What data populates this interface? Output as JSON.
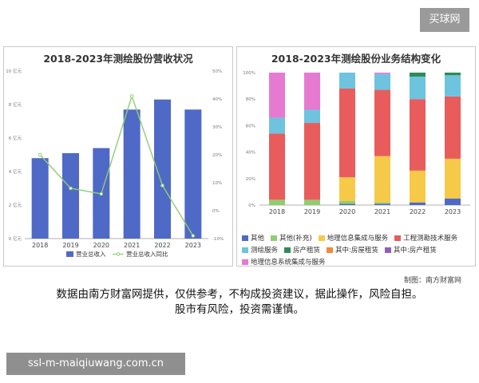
{
  "brand_badge": "买球网",
  "left_chart": {
    "title": "2018-2023年测绘股份营收状况",
    "legend": [
      "营业总收入",
      "营业总收入同比"
    ],
    "left_ticks": [
      "0 亿元",
      "2 亿元",
      "4 亿元",
      "6 亿元",
      "8 亿元",
      "10 亿元"
    ],
    "right_ticks": [
      "-10%",
      "0%",
      "10%",
      "20%",
      "30%",
      "40%",
      "50%"
    ]
  },
  "right_chart": {
    "title": "2018-2023年测绘股份业务结构变化",
    "y_ticks": [
      "0%",
      "20%",
      "40%",
      "60%",
      "80%",
      "100%"
    ],
    "legend": [
      "其他",
      "其他(补充)",
      "地理信息集成与服务",
      "工程测勘技术服务",
      "测绘服务",
      "房产租赁",
      "其中:房屋租赁",
      "其中:房产租赁",
      "地理信息系统集成与服务"
    ]
  },
  "colors": {
    "bar": "#4f69c6",
    "line": "#8fce6f",
    "seg_other": "#4f69c6",
    "seg_other2": "#8fce6f",
    "seg_gis": "#f7c948",
    "seg_eng": "#e85c5c",
    "seg_survey": "#6ec3de",
    "seg_rent": "#2e8b57",
    "seg_rent_house": "#f08a3c",
    "seg_rent_prop": "#8e5fbf",
    "seg_gis_sys": "#e67ad0"
  },
  "chart_data": [
    {
      "type": "bar",
      "title": "2018-2023年测绘股份营收状况",
      "categories": [
        "2018",
        "2019",
        "2020",
        "2021",
        "2022",
        "2023"
      ],
      "series": [
        {
          "name": "营业总收入",
          "values": [
            4.8,
            5.1,
            5.4,
            7.7,
            8.3,
            7.7
          ],
          "axis": "left"
        },
        {
          "name": "营业总收入同比",
          "type": "line",
          "values": [
            20,
            8,
            6,
            41,
            9,
            -9
          ],
          "axis": "right"
        }
      ],
      "ylim_left": [
        0,
        10
      ],
      "ylim_right": [
        -10,
        50
      ],
      "grid": false,
      "legend": "bottom"
    },
    {
      "type": "bar",
      "stacked": true,
      "title": "2018-2023年测绘股份业务结构变化",
      "categories": [
        "2018",
        "2019",
        "2020",
        "2021",
        "2022",
        "2023"
      ],
      "series": [
        {
          "name": "其他",
          "values": [
            0,
            0,
            1,
            1,
            2,
            5
          ]
        },
        {
          "name": "其他(补充)",
          "values": [
            4,
            4,
            2,
            1,
            0,
            0
          ]
        },
        {
          "name": "地理信息集成与服务",
          "values": [
            0,
            0,
            18,
            35,
            24,
            30
          ]
        },
        {
          "name": "工程测勘技术服务",
          "values": [
            50,
            58,
            67,
            50,
            54,
            47
          ]
        },
        {
          "name": "测绘服务",
          "values": [
            12,
            10,
            12,
            12,
            17,
            16
          ]
        },
        {
          "name": "房产租赁",
          "values": [
            0,
            0,
            0,
            0,
            3,
            2
          ]
        },
        {
          "name": "其中:房屋租赁",
          "values": [
            0,
            0,
            0,
            0,
            0,
            0
          ]
        },
        {
          "name": "其中:房产租赁",
          "values": [
            0,
            0,
            0,
            0,
            0,
            0
          ]
        },
        {
          "name": "地理信息系统集成与服务",
          "values": [
            34,
            28,
            0,
            1,
            0,
            0
          ]
        }
      ],
      "ylim": [
        0,
        100
      ],
      "grid": false,
      "legend": "bottom"
    }
  ],
  "footer": {
    "source": "制图：南方财富网",
    "disclaimer_line1": "数据由南方财富网提供，仅供参考，不构成投资建议，据此操作，风险自担。",
    "disclaimer_line2": "股市有风险，投资需谨慎。",
    "url": "ssl-m-maiqiuwang.com.cn"
  }
}
